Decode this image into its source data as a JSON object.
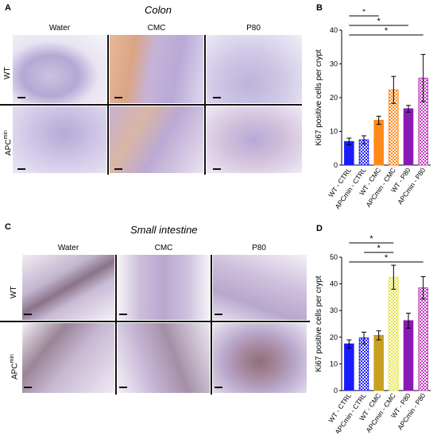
{
  "panels": {
    "A": {
      "letter": "A",
      "title": "Colon",
      "columns": [
        "Water",
        "CMC",
        "P80"
      ],
      "rows": [
        "WT",
        "APCmin"
      ]
    },
    "C": {
      "letter": "C",
      "title": "Small intestine",
      "columns": [
        "Water",
        "CMC",
        "P80"
      ],
      "rows": [
        "WT",
        "APCmin"
      ]
    },
    "B": {
      "letter": "B"
    },
    "D": {
      "letter": "D"
    }
  },
  "row_label_parts": {
    "wt": "WT",
    "apc_base": "APC",
    "apc_sup": "min"
  },
  "chart_data": [
    {
      "type": "bar",
      "panel": "B",
      "ylabel": "Ki67 positive cells per crypt",
      "ylim": [
        0,
        40
      ],
      "yticks": [
        0,
        10,
        20,
        30,
        40
      ],
      "categories": [
        "WT - CTRL",
        "APCmin - CTRL",
        "WT - CMC",
        "APCmin - CMC",
        "WT - P80",
        "APCmin - P80"
      ],
      "values": [
        7,
        7.5,
        13.3,
        22.3,
        16.7,
        25.8
      ],
      "errors": [
        1,
        1.2,
        1.2,
        4,
        1,
        7
      ],
      "colors": [
        "#1a1aff",
        "#1a1aff",
        "#ff8a1a",
        "#ff8a1a",
        "#8a1ab5",
        "#c040c0"
      ],
      "patterned": [
        false,
        true,
        false,
        true,
        false,
        true
      ],
      "significance": [
        {
          "from": 0,
          "to": 2,
          "label": "*"
        },
        {
          "from": 0,
          "to": 4,
          "label": "*"
        },
        {
          "from": 0,
          "to": 5,
          "label": "*"
        }
      ]
    },
    {
      "type": "bar",
      "panel": "D",
      "ylabel": "Ki67 positive cells per crypt",
      "ylim": [
        0,
        50
      ],
      "yticks": [
        0,
        10,
        20,
        30,
        40,
        50
      ],
      "categories": [
        "WT - CTRL",
        "APCmin - CTRL",
        "WT - CMC",
        "APCmin - CMC",
        "WT - P80",
        "APCmin - P80"
      ],
      "values": [
        17.5,
        19.7,
        20.7,
        42.5,
        26.2,
        38.5
      ],
      "errors": [
        1.5,
        2.2,
        1.7,
        4.5,
        2.8,
        4.2
      ],
      "colors": [
        "#1a1aff",
        "#1a1aff",
        "#c8a020",
        "#e6e64d",
        "#8a1ab5",
        "#c040c0"
      ],
      "patterned": [
        false,
        true,
        false,
        true,
        false,
        true
      ],
      "significance": [
        {
          "from": 0,
          "to": 3,
          "label": "*"
        },
        {
          "from": 1,
          "to": 3,
          "label": "*"
        },
        {
          "from": 0,
          "to": 5,
          "label": "*"
        }
      ]
    }
  ]
}
